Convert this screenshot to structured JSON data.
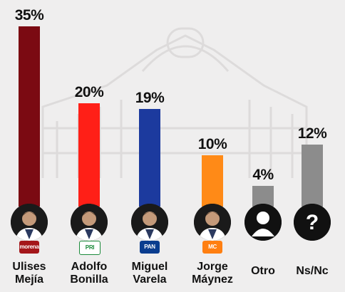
{
  "chart_data": {
    "type": "bar",
    "categories": [
      "Ulises\nMejía",
      "Adolfo\nBonilla",
      "Miguel\nVarela",
      "Jorge\nMáynez",
      "Otro",
      "Ns/Nc"
    ],
    "values": [
      35,
      20,
      19,
      10,
      4,
      12
    ],
    "value_labels": [
      "35%",
      "20%",
      "19%",
      "10%",
      "4%",
      "12%"
    ],
    "colors": [
      "#7b0a12",
      "#ff1f17",
      "#1c3a9e",
      "#ff8a17",
      "#8c8c8c",
      "#8c8c8c"
    ],
    "party_badges": [
      {
        "text": "morena",
        "color": "#a4161a",
        "text_color": "#ffffff"
      },
      {
        "text": "PRI",
        "color": "#ffffff",
        "text_color": "#1b8a3a"
      },
      {
        "text": "PAN",
        "color": "#0a3d8f",
        "text_color": "#ffffff"
      },
      {
        "text": "MC",
        "color": "#ff7f11",
        "text_color": "#ffffff"
      },
      null,
      null
    ],
    "avatar_icons": [
      "person-photo-icon",
      "person-photo-icon",
      "person-photo-icon",
      "person-photo-icon",
      "person-silhouette-icon",
      "question-mark-icon"
    ],
    "ylim": [
      0,
      35
    ],
    "grid": false,
    "legend": "none"
  }
}
